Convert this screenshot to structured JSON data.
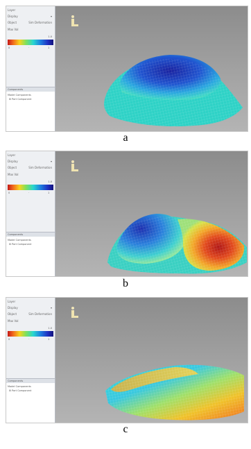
{
  "panels": [
    {
      "id": "a",
      "caption": "a",
      "sidebar": {
        "title": "Layer",
        "rows": [
          {
            "label": "Display",
            "value": "▾"
          },
          {
            "label": "Object",
            "value": "Sim Deformation"
          },
          {
            "label": "Max Val",
            "value": ""
          }
        ],
        "colorbar_labels": [
          "0",
          "·",
          "1"
        ],
        "colorbar_top": "1.0",
        "tree_title": "Components",
        "tree_items": [
          "Model Components",
          "⊞ Part Component"
        ]
      },
      "surface": "dome-blue",
      "colors": {
        "primary": "#1f2fa8",
        "secondary": "#2ad3c8"
      }
    },
    {
      "id": "b",
      "caption": "b",
      "sidebar": {
        "title": "Layer",
        "rows": [
          {
            "label": "Display",
            "value": "▾"
          },
          {
            "label": "Object",
            "value": "Sim Deformation"
          },
          {
            "label": "Max Val",
            "value": ""
          }
        ],
        "colorbar_labels": [
          "0",
          "·",
          "1"
        ],
        "colorbar_top": "1.0",
        "tree_title": "Components",
        "tree_items": [
          "Model Components",
          "⊞ Part Component"
        ]
      },
      "surface": "split-blue-red",
      "colors": {
        "primary": "#1f4fc8",
        "secondary": "#c62a1e"
      }
    },
    {
      "id": "c",
      "caption": "c",
      "sidebar": {
        "title": "Layer",
        "rows": [
          {
            "label": "Display",
            "value": "▾"
          },
          {
            "label": "Object",
            "value": "Sim Deformation"
          },
          {
            "label": "Max Val",
            "value": ""
          }
        ],
        "colorbar_labels": [
          "0",
          "·",
          "1"
        ],
        "colorbar_top": "1.0",
        "tree_title": "Components",
        "tree_items": [
          "Model Components",
          "⊞ Part Component"
        ]
      },
      "surface": "tilted-orange",
      "colors": {
        "primary": "#f0a624",
        "secondary": "#3ad6d0"
      }
    }
  ],
  "icons": {
    "viewport_logo": "figure-logo-icon"
  }
}
